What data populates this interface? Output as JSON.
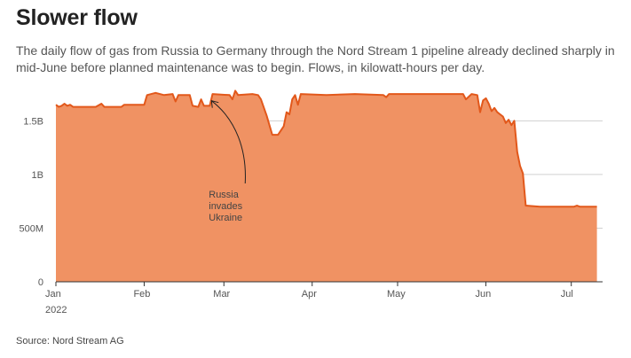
{
  "title": "Slower flow",
  "subtitle": "The daily flow of gas from Russia to Germany through the Nord Stream 1 pipeline already declined sharply in mid-June before planned maintenance was to begin. Flows, in kilowatt-hours per day.",
  "source": "Source: Nord Stream AG",
  "colors": {
    "area": "#f09263",
    "line": "#e2581b",
    "grid": "#d0d0d0",
    "axis": "#333333",
    "text": "#555555"
  },
  "chart_data": {
    "type": "area",
    "x_unit": "day",
    "ylim": [
      0,
      1800000000
    ],
    "xlim": [
      "2022-01-01",
      "2022-07-12"
    ],
    "y_ticks": [
      {
        "value": 0,
        "label": "0"
      },
      {
        "value": 500000000,
        "label": "500M"
      },
      {
        "value": 1000000000,
        "label": "1B"
      },
      {
        "value": 1500000000,
        "label": "1.5B"
      }
    ],
    "x_ticks": [
      {
        "date": "2022-01-01",
        "label": "Jan",
        "sublabel": "2022"
      },
      {
        "date": "2022-02-01",
        "label": "Feb"
      },
      {
        "date": "2022-03-01",
        "label": "Mar"
      },
      {
        "date": "2022-04-01",
        "label": "Apr"
      },
      {
        "date": "2022-05-01",
        "label": "May"
      },
      {
        "date": "2022-06-01",
        "label": "Jun"
      },
      {
        "date": "2022-07-01",
        "label": "Jul"
      }
    ],
    "grid": true,
    "series": [
      {
        "points": [
          [
            "2022-01-01",
            1650000000
          ],
          [
            "2022-01-02",
            1630000000
          ],
          [
            "2022-01-03",
            1640000000
          ],
          [
            "2022-01-04",
            1660000000
          ],
          [
            "2022-01-05",
            1640000000
          ],
          [
            "2022-01-06",
            1650000000
          ],
          [
            "2022-01-07",
            1630000000
          ],
          [
            "2022-01-15",
            1630000000
          ],
          [
            "2022-01-17",
            1660000000
          ],
          [
            "2022-01-18",
            1630000000
          ],
          [
            "2022-01-24",
            1630000000
          ],
          [
            "2022-01-25",
            1650000000
          ],
          [
            "2022-02-01",
            1650000000
          ],
          [
            "2022-02-02",
            1740000000
          ],
          [
            "2022-02-05",
            1760000000
          ],
          [
            "2022-02-08",
            1740000000
          ],
          [
            "2022-02-11",
            1750000000
          ],
          [
            "2022-02-12",
            1680000000
          ],
          [
            "2022-02-13",
            1740000000
          ],
          [
            "2022-02-17",
            1740000000
          ],
          [
            "2022-02-18",
            1640000000
          ],
          [
            "2022-02-20",
            1630000000
          ],
          [
            "2022-02-21",
            1700000000
          ],
          [
            "2022-02-22",
            1640000000
          ],
          [
            "2022-02-24",
            1640000000
          ],
          [
            "2022-02-25",
            1750000000
          ],
          [
            "2022-03-03",
            1740000000
          ],
          [
            "2022-03-04",
            1700000000
          ],
          [
            "2022-03-05",
            1780000000
          ],
          [
            "2022-03-06",
            1740000000
          ],
          [
            "2022-03-11",
            1750000000
          ],
          [
            "2022-03-13",
            1740000000
          ],
          [
            "2022-03-14",
            1700000000
          ],
          [
            "2022-03-16",
            1550000000
          ],
          [
            "2022-03-18",
            1370000000
          ],
          [
            "2022-03-20",
            1370000000
          ],
          [
            "2022-03-22",
            1450000000
          ],
          [
            "2022-03-23",
            1580000000
          ],
          [
            "2022-03-24",
            1560000000
          ],
          [
            "2022-03-25",
            1700000000
          ],
          [
            "2022-03-26",
            1740000000
          ],
          [
            "2022-03-27",
            1650000000
          ],
          [
            "2022-03-28",
            1750000000
          ],
          [
            "2022-04-06",
            1740000000
          ],
          [
            "2022-04-16",
            1750000000
          ],
          [
            "2022-04-26",
            1740000000
          ],
          [
            "2022-04-27",
            1720000000
          ],
          [
            "2022-04-28",
            1750000000
          ],
          [
            "2022-05-24",
            1750000000
          ],
          [
            "2022-05-25",
            1700000000
          ],
          [
            "2022-05-27",
            1750000000
          ],
          [
            "2022-05-29",
            1740000000
          ],
          [
            "2022-05-30",
            1580000000
          ],
          [
            "2022-05-31",
            1690000000
          ],
          [
            "2022-06-01",
            1710000000
          ],
          [
            "2022-06-02",
            1660000000
          ],
          [
            "2022-06-03",
            1590000000
          ],
          [
            "2022-06-04",
            1620000000
          ],
          [
            "2022-06-05",
            1580000000
          ],
          [
            "2022-06-07",
            1540000000
          ],
          [
            "2022-06-08",
            1480000000
          ],
          [
            "2022-06-09",
            1510000000
          ],
          [
            "2022-06-10",
            1460000000
          ],
          [
            "2022-06-11",
            1500000000
          ],
          [
            "2022-06-12",
            1210000000
          ],
          [
            "2022-06-13",
            1080000000
          ],
          [
            "2022-06-14",
            1010000000
          ],
          [
            "2022-06-15",
            710000000
          ],
          [
            "2022-06-20",
            700000000
          ],
          [
            "2022-07-02",
            700000000
          ],
          [
            "2022-07-03",
            710000000
          ],
          [
            "2022-07-04",
            700000000
          ],
          [
            "2022-07-10",
            700000000
          ]
        ]
      }
    ],
    "annotations": [
      {
        "text": [
          "Russia",
          "invades",
          "Ukraine"
        ],
        "date": "2022-02-24",
        "value": 1720000000
      }
    ]
  }
}
